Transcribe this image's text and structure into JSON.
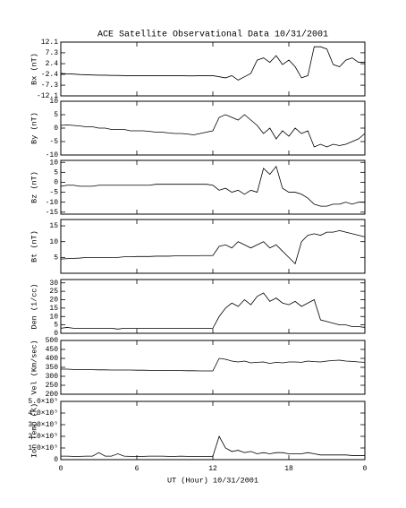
{
  "chart_data": [
    {
      "type": "line",
      "title": "ACE Satellite Observational Data  10/31/2001",
      "ylabel": "Bx (nT)",
      "x": [
        0,
        0.5,
        1,
        1.5,
        2,
        2.5,
        3,
        3.5,
        4,
        4.5,
        5,
        5.5,
        6,
        6.5,
        7,
        7.5,
        8,
        8.5,
        9,
        9.5,
        10,
        10.5,
        11,
        11.5,
        12,
        12.5,
        13,
        13.5,
        14,
        14.5,
        15,
        15.5,
        16,
        16.5,
        17,
        17.5,
        18,
        18.5,
        19,
        19.5,
        20,
        20.5,
        21,
        21.5,
        22,
        22.5,
        23,
        23.5,
        24
      ],
      "series": [
        {
          "color": "#000000",
          "values": [
            -2,
            -2.2,
            -2.3,
            -2.5,
            -2.6,
            -2.7,
            -2.8,
            -2.8,
            -2.9,
            -2.9,
            -3,
            -3,
            -3,
            -3,
            -3,
            -3,
            -3,
            -3,
            -3,
            -3,
            -3.1,
            -3.1,
            -3,
            -3,
            -3,
            -3.5,
            -4,
            -3,
            -5,
            -3.5,
            -2,
            4,
            5,
            3,
            6,
            2,
            4,
            1,
            -4,
            -3,
            10,
            10,
            9,
            2,
            1,
            4,
            5,
            3,
            3
          ]
        }
      ],
      "xlim": [
        0,
        24
      ],
      "ylim": [
        -12.1,
        12.1
      ],
      "yticks": [
        -12.1,
        -7.3,
        -2.4,
        2.4,
        7.3,
        12.1
      ]
    },
    {
      "type": "line",
      "ylabel": "By (nT)",
      "x": [
        0,
        0.5,
        1,
        1.5,
        2,
        2.5,
        3,
        3.5,
        4,
        4.5,
        5,
        5.5,
        6,
        6.5,
        7,
        7.5,
        8,
        8.5,
        9,
        9.5,
        10,
        10.5,
        11,
        11.5,
        12,
        12.5,
        13,
        13.5,
        14,
        14.5,
        15,
        15.5,
        16,
        16.5,
        17,
        17.5,
        18,
        18.5,
        19,
        19.5,
        20,
        20.5,
        21,
        21.5,
        22,
        22.5,
        23,
        23.5,
        24
      ],
      "series": [
        {
          "color": "#000000",
          "values": [
            1,
            1.2,
            1,
            0.8,
            0.5,
            0.5,
            0,
            0,
            -0.5,
            -0.5,
            -0.5,
            -1,
            -1,
            -1,
            -1.2,
            -1.5,
            -1.5,
            -1.8,
            -2,
            -2,
            -2.2,
            -2.5,
            -2,
            -1.5,
            -1,
            4,
            5,
            4,
            3,
            5,
            3,
            1,
            -2,
            0,
            -4,
            -1,
            -3,
            0,
            -2,
            -1,
            -7,
            -6,
            -7,
            -6,
            -6.5,
            -6,
            -5,
            -4,
            -2
          ]
        }
      ],
      "xlim": [
        0,
        24
      ],
      "ylim": [
        -10,
        10
      ],
      "yticks": [
        -10,
        -5,
        0,
        5,
        10
      ]
    },
    {
      "type": "line",
      "ylabel": "Bz (nT)",
      "x": [
        0,
        0.5,
        1,
        1.5,
        2,
        2.5,
        3,
        3.5,
        4,
        4.5,
        5,
        5.5,
        6,
        6.5,
        7,
        7.5,
        8,
        8.5,
        9,
        9.5,
        10,
        10.5,
        11,
        11.5,
        12,
        12.5,
        13,
        13.5,
        14,
        14.5,
        15,
        15.5,
        16,
        16.5,
        17,
        17.5,
        18,
        18.5,
        19,
        19.5,
        20,
        20.5,
        21,
        21.5,
        22,
        22.5,
        23,
        23.5,
        24
      ],
      "series": [
        {
          "color": "#000000",
          "values": [
            -2,
            -1.5,
            -1.5,
            -2,
            -2,
            -2,
            -1.5,
            -1.5,
            -1.5,
            -1.5,
            -1.5,
            -1.5,
            -1.5,
            -1.5,
            -1.5,
            -1,
            -1,
            -1,
            -1,
            -1,
            -1,
            -1,
            -1,
            -1,
            -1.5,
            -4,
            -3,
            -5,
            -4,
            -6,
            -4,
            -5,
            7,
            4,
            8,
            -3,
            -5,
            -5,
            -6,
            -8,
            -11,
            -12,
            -12,
            -11,
            -11,
            -10,
            -11,
            -10,
            -10
          ]
        }
      ],
      "xlim": [
        0,
        24
      ],
      "ylim": [
        -16,
        11
      ],
      "yticks": [
        -15,
        -10,
        -5,
        0,
        5,
        10
      ]
    },
    {
      "type": "line",
      "ylabel": "Bt (nT)",
      "x": [
        0,
        0.5,
        1,
        1.5,
        2,
        2.5,
        3,
        3.5,
        4,
        4.5,
        5,
        5.5,
        6,
        6.5,
        7,
        7.5,
        8,
        8.5,
        9,
        9.5,
        10,
        10.5,
        11,
        11.5,
        12,
        12.5,
        13,
        13.5,
        14,
        14.5,
        15,
        15.5,
        16,
        16.5,
        17,
        17.5,
        18,
        18.5,
        19,
        19.5,
        20,
        20.5,
        21,
        21.5,
        22,
        22.5,
        23,
        23.5,
        24
      ],
      "series": [
        {
          "color": "#000000",
          "values": [
            4.5,
            4.6,
            4.7,
            4.8,
            5,
            5,
            5,
            5,
            5,
            5,
            5.2,
            5.2,
            5.3,
            5.3,
            5.3,
            5.4,
            5.4,
            5.4,
            5.5,
            5.5,
            5.5,
            5.5,
            5.6,
            5.6,
            5.6,
            8.5,
            9,
            8,
            10,
            9,
            8,
            9,
            10,
            8,
            9,
            7,
            5,
            3,
            10,
            12,
            12.5,
            12,
            13,
            13,
            13.5,
            13,
            12.5,
            12,
            11.5
          ]
        }
      ],
      "xlim": [
        0,
        24
      ],
      "ylim": [
        0,
        17
      ],
      "yticks": [
        5,
        10,
        15
      ]
    },
    {
      "type": "line",
      "ylabel": "Den (1/cc)",
      "x": [
        0,
        0.5,
        1,
        1.5,
        2,
        2.5,
        3,
        3.5,
        4,
        4.5,
        5,
        5.5,
        6,
        6.5,
        7,
        7.5,
        8,
        8.5,
        9,
        9.5,
        10,
        10.5,
        11,
        11.5,
        12,
        12.5,
        13,
        13.5,
        14,
        14.5,
        15,
        15.5,
        16,
        16.5,
        17,
        17.5,
        18,
        18.5,
        19,
        19.5,
        20,
        20.5,
        21,
        21.5,
        22,
        22.5,
        23,
        23.5,
        24
      ],
      "series": [
        {
          "color": "#000000",
          "values": [
            3,
            3.5,
            3,
            3,
            3,
            3,
            3,
            3,
            3,
            2.5,
            3,
            3,
            3,
            3,
            3,
            3,
            3,
            3,
            3,
            3,
            3,
            3,
            3,
            3,
            3,
            10,
            15,
            18,
            16,
            20,
            17,
            22,
            24,
            19,
            21,
            18,
            17,
            19,
            16,
            18,
            20,
            8,
            7,
            6,
            5,
            5,
            4,
            4,
            3.5
          ]
        }
      ],
      "xlim": [
        0,
        24
      ],
      "ylim": [
        0,
        32
      ],
      "yticks": [
        0,
        5,
        10,
        15,
        20,
        25,
        30
      ]
    },
    {
      "type": "line",
      "ylabel": "Vel (Km/sec)",
      "x": [
        0,
        0.5,
        1,
        1.5,
        2,
        2.5,
        3,
        3.5,
        4,
        4.5,
        5,
        5.5,
        6,
        6.5,
        7,
        7.5,
        8,
        8.5,
        9,
        9.5,
        10,
        10.5,
        11,
        11.5,
        12,
        12.5,
        13,
        13.5,
        14,
        14.5,
        15,
        15.5,
        16,
        16.5,
        17,
        17.5,
        18,
        18.5,
        19,
        19.5,
        20,
        20.5,
        21,
        21.5,
        22,
        22.5,
        23,
        23.5,
        24
      ],
      "series": [
        {
          "color": "#000000",
          "values": [
            340,
            340,
            338,
            338,
            337,
            337,
            336,
            336,
            335,
            335,
            335,
            335,
            334,
            334,
            333,
            333,
            333,
            332,
            332,
            332,
            331,
            331,
            330,
            330,
            330,
            400,
            395,
            385,
            380,
            385,
            375,
            378,
            380,
            372,
            378,
            375,
            380,
            380,
            378,
            385,
            382,
            380,
            385,
            388,
            390,
            385,
            383,
            380,
            378
          ]
        }
      ],
      "xlim": [
        0,
        24
      ],
      "ylim": [
        200,
        500
      ],
      "yticks": [
        200,
        250,
        300,
        350,
        400,
        450,
        500
      ]
    },
    {
      "type": "line",
      "ylabel": "Ion Temp (K)",
      "xlabel": "UT (Hour)  10/31/2001",
      "x": [
        0,
        0.5,
        1,
        1.5,
        2,
        2.5,
        3,
        3.5,
        4,
        4.5,
        5,
        5.5,
        6,
        6.5,
        7,
        7.5,
        8,
        8.5,
        9,
        9.5,
        10,
        10.5,
        11,
        11.5,
        12,
        12.5,
        13,
        13.5,
        14,
        14.5,
        15,
        15.5,
        16,
        16.5,
        17,
        17.5,
        18,
        18.5,
        19,
        19.5,
        20,
        20.5,
        21,
        21.5,
        22,
        22.5,
        23,
        23.5,
        24
      ],
      "series": [
        {
          "color": "#000000",
          "values": [
            30000,
            30000,
            28000,
            28000,
            30000,
            30000,
            60000,
            30000,
            30000,
            50000,
            30000,
            28000,
            28000,
            28000,
            30000,
            30000,
            30000,
            28000,
            28000,
            30000,
            28000,
            28000,
            28000,
            28000,
            28000,
            200000,
            100000,
            70000,
            80000,
            60000,
            70000,
            50000,
            60000,
            50000,
            60000,
            60000,
            50000,
            50000,
            50000,
            60000,
            50000,
            40000,
            40000,
            40000,
            40000,
            40000,
            35000,
            35000,
            35000
          ]
        }
      ],
      "xlim": [
        0,
        24
      ],
      "ylim": [
        0,
        500000
      ],
      "yticks": [
        0,
        {
          "value": 100000,
          "label": "1.0×10⁵"
        },
        {
          "value": 200000,
          "label": "2.0×10⁵"
        },
        {
          "value": 300000,
          "label": "3.0×10⁵"
        },
        {
          "value": 400000,
          "label": "4.0×10⁵"
        },
        {
          "value": 500000,
          "label": "5.0×10⁵"
        }
      ],
      "xticks": [
        0,
        6,
        12,
        18,
        {
          "value": 24,
          "label": "0"
        }
      ]
    }
  ]
}
